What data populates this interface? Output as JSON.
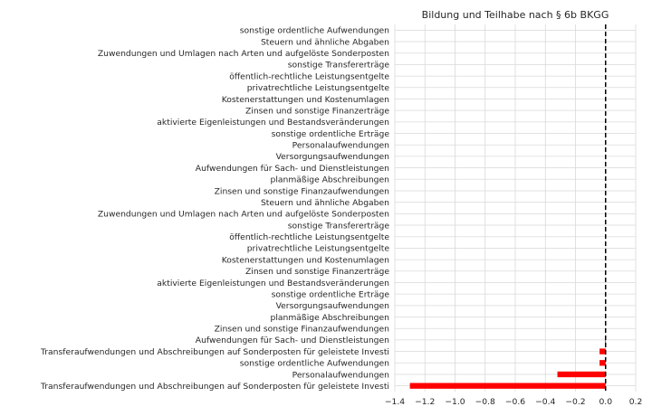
{
  "chart_data": {
    "type": "bar",
    "orientation": "horizontal",
    "title": "Bildung und Teilhabe nach § 6b BKGG",
    "xlabel": "",
    "ylabel": "",
    "xlim": [
      -1.4,
      0.2
    ],
    "xticks": [
      -1.4,
      -1.2,
      -1.0,
      -0.8,
      -0.6,
      -0.4,
      -0.2,
      0.0,
      0.2
    ],
    "xtick_labels": [
      "−1.4",
      "−1.2",
      "−1.0",
      "−0.8",
      "−0.6",
      "−0.4",
      "−0.2",
      "0.0",
      "0.2"
    ],
    "grid": true,
    "reference_line": {
      "x": 0.0,
      "style": "dashed",
      "color": "#000000"
    },
    "bar_color": "#ff0000",
    "categories": [
      "Transferaufwendungen und Abschreibungen auf Sonderposten für geleistete Investi",
      "Personalaufwendungen",
      "sonstige ordentliche Aufwendungen",
      "Transferaufwendungen und Abschreibungen auf Sonderposten für geleistete Investi",
      "Aufwendungen für Sach- und Dienstleistungen",
      "Zinsen und sonstige Finanzaufwendungen",
      "planmäßige Abschreibungen",
      "Versorgungsaufwendungen",
      "sonstige ordentliche Erträge",
      "aktivierte Eigenleistungen und Bestandsveränderungen",
      "Zinsen und sonstige Finanzerträge",
      "Kostenerstattungen und Kostenumlagen",
      "privatrechtliche Leistungsentgelte",
      "öffentlich-rechtliche Leistungsentgelte",
      "sonstige Transfererträge",
      "Zuwendungen und Umlagen nach Arten und aufgelöste Sonderposten",
      "Steuern und ähnliche Abgaben",
      "Zinsen und sonstige Finanzaufwendungen",
      "planmäßige Abschreibungen",
      "Aufwendungen für Sach- und Dienstleistungen",
      "Versorgungsaufwendungen",
      "Personalaufwendungen",
      "sonstige ordentliche Erträge",
      "aktivierte Eigenleistungen und Bestandsveränderungen",
      "Zinsen und sonstige Finanzerträge",
      "Kostenerstattungen und Kostenumlagen",
      "privatrechtliche Leistungsentgelte",
      "öffentlich-rechtliche Leistungsentgelte",
      "sonstige Transfererträge",
      "Zuwendungen und Umlagen nach Arten und aufgelöste Sonderposten",
      "Steuern und ähnliche Abgaben",
      "sonstige ordentliche Aufwendungen"
    ],
    "values": [
      -1.3,
      -0.32,
      -0.04,
      -0.04,
      -0.003,
      0,
      0,
      0,
      0,
      0,
      0,
      0,
      0,
      0,
      0,
      0,
      0,
      0,
      0,
      0,
      0,
      0,
      0,
      0,
      0,
      0,
      0,
      0,
      0,
      0,
      0,
      0
    ]
  }
}
